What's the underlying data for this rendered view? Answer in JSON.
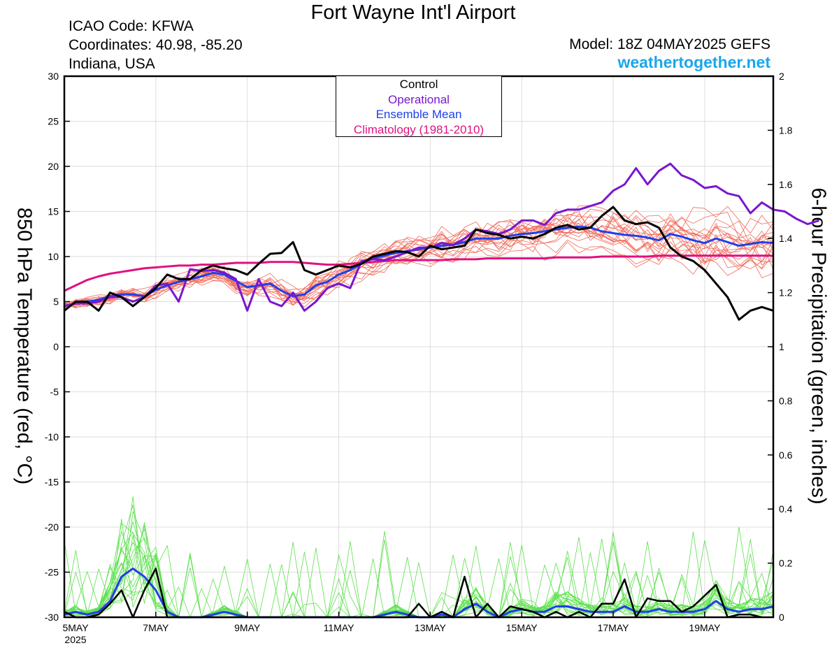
{
  "header": {
    "title": "Fort Wayne Int'l Airport",
    "icao": "ICAO Code: KFWA",
    "coordinates": "Coordinates: 40.98, -85.20",
    "region": "Indiana, USA",
    "model": "Model: 18Z 04MAY2025 GEFS",
    "site": "weathertogether.net"
  },
  "chart_data": {
    "type": "line",
    "title": "Fort Wayne Int'l Airport",
    "ylabel": "850 hPa Temperature (red, °C)",
    "y2label": "6-hour Precipitation (green, inches)",
    "ylim": [
      -30,
      30
    ],
    "y2lim": [
      0,
      2
    ],
    "yticks": [
      "30",
      "25",
      "20",
      "15",
      "10",
      "5",
      "0",
      "-5",
      "-10",
      "-15",
      "-20",
      "-25",
      "-30"
    ],
    "y2ticks": [
      "2",
      "1.8",
      "1.6",
      "1.4",
      "1.2",
      "1",
      "0.8",
      "0.6",
      "0.4",
      "0.2",
      "0"
    ],
    "xlim": [
      0,
      62
    ],
    "xticks": [
      {
        "x": 0,
        "label": "5MAY",
        "sub": "2025"
      },
      {
        "x": 8,
        "label": "7MAY"
      },
      {
        "x": 16,
        "label": "9MAY"
      },
      {
        "x": 24,
        "label": "11MAY"
      },
      {
        "x": 32,
        "label": "13MAY"
      },
      {
        "x": 40,
        "label": "15MAY"
      },
      {
        "x": 48,
        "label": "17MAY"
      },
      {
        "x": 56,
        "label": "19MAY"
      }
    ],
    "legend": [
      "Control",
      "Operational",
      "Ensemble Mean",
      "Climatology (1981-2010)"
    ],
    "colors": {
      "control": "#000000",
      "operational": "#7a16cf",
      "mean": "#2140e8",
      "climatology": "#e0117f",
      "members": "#f06a5a",
      "precip_members": "#5ae04a"
    },
    "series": {
      "control": [
        4,
        5,
        5,
        4,
        6,
        5.5,
        4.5,
        5.5,
        6.5,
        8,
        7.5,
        7.5,
        8.5,
        9,
        8.7,
        8.5,
        8,
        9.2,
        10.3,
        10.4,
        11.6,
        8.5,
        8,
        8.5,
        9,
        8.8,
        9.2,
        10,
        10.3,
        10.6,
        10.5,
        10,
        11.2,
        10.8,
        11,
        11.2,
        13,
        12.6,
        12.4,
        12,
        12.2,
        12,
        12.5,
        13.2,
        13.5,
        13,
        13.2,
        14.5,
        15.5,
        14,
        13.6,
        13.8,
        13.2,
        11,
        10,
        9.5,
        8.5,
        7,
        5.5,
        3,
        4,
        4.4,
        4
      ],
      "operational": [
        4.5,
        4.8,
        4.8,
        5,
        5.5,
        5.5,
        5,
        5.5,
        6.8,
        7,
        5,
        8.6,
        8.4,
        8.5,
        8.2,
        7.5,
        4,
        7.5,
        5,
        4.5,
        6,
        4,
        5,
        6.5,
        7,
        6.5,
        9.5,
        9.7,
        9.6,
        10,
        10.5,
        11,
        11,
        11.5,
        11.3,
        12,
        13,
        12.8,
        12.5,
        13,
        14,
        14,
        13.5,
        14.8,
        15.2,
        15.2,
        15.6,
        16,
        17.3,
        18,
        19.8,
        18,
        19.5,
        20.3,
        19,
        18.5,
        17.6,
        17.8,
        17,
        16.7,
        14.8,
        16,
        15.2,
        15,
        14.2,
        13.6,
        14
      ],
      "mean": [
        4.5,
        4.8,
        5,
        5.2,
        5.6,
        5.8,
        5.8,
        5.6,
        6.3,
        6.8,
        7.2,
        7.5,
        7.8,
        8.2,
        8,
        7.3,
        6.6,
        6.8,
        7,
        6.2,
        5.6,
        5.8,
        6.8,
        7.2,
        8,
        8.5,
        9.2,
        9.8,
        10.1,
        10.4,
        10.6,
        10.8,
        11,
        11.2,
        11.3,
        11.6,
        12,
        12,
        12,
        12.3,
        12.5,
        12.6,
        12.8,
        13,
        13.2,
        13.3,
        13.2,
        12.8,
        12.6,
        12.4,
        12.3,
        12.1,
        11.8,
        12.5,
        12.2,
        11.8,
        11.5,
        12,
        11.6,
        11.2,
        11.4,
        11.6,
        11.5
      ],
      "climatology": [
        6.2,
        6.8,
        7.4,
        7.8,
        8.1,
        8.3,
        8.5,
        8.7,
        8.8,
        8.9,
        9.0,
        9.0,
        9.1,
        9.1,
        9.2,
        9.3,
        9.3,
        9.3,
        9.4,
        9.4,
        9.4,
        9.3,
        9.2,
        9.1,
        9.1,
        9.2,
        9.3,
        9.4,
        9.5,
        9.6,
        9.6,
        9.6,
        9.6,
        9.6,
        9.7,
        9.7,
        9.7,
        9.8,
        9.8,
        9.8,
        9.8,
        9.8,
        9.8,
        9.9,
        9.9,
        9.9,
        9.9,
        10.0,
        10.0,
        10.0,
        10.0,
        10.0,
        10.1,
        10.1,
        10.1,
        10.1,
        10.1,
        10.1,
        10.1,
        10.1,
        10.1,
        10.1,
        10.1
      ],
      "precip_control": [
        0.02,
        0,
        0,
        0.01,
        0.05,
        0.1,
        0,
        0.1,
        0.18,
        0,
        0,
        0,
        0,
        0,
        0,
        0,
        0,
        0,
        0,
        0,
        0,
        0,
        0,
        0,
        0,
        0,
        0,
        0,
        0,
        0,
        0,
        0.05,
        0,
        0.02,
        0,
        0.15,
        0,
        0.05,
        0,
        0.04,
        0.03,
        0.02,
        0,
        0.02,
        0,
        0.02,
        0,
        0.05,
        0.05,
        0.14,
        0,
        0.07,
        0.06,
        0.06,
        0.02,
        0.04,
        0.08,
        0.12,
        0,
        0.01,
        0.01,
        0
      ],
      "precip_mean": [
        0.01,
        0.02,
        0.01,
        0.02,
        0.06,
        0.15,
        0.18,
        0.15,
        0.1,
        0.02,
        0,
        0,
        0,
        0.01,
        0.02,
        0.01,
        0,
        0,
        0,
        0,
        0,
        0,
        0,
        0,
        0,
        0,
        0,
        0,
        0.01,
        0.02,
        0.01,
        0,
        0,
        0.01,
        0,
        0.03,
        0.05,
        0.02,
        0,
        0.02,
        0.03,
        0.02,
        0.02,
        0.04,
        0.04,
        0.03,
        0.02,
        0.02,
        0.02,
        0.04,
        0.02,
        0.02,
        0.03,
        0.02,
        0.02,
        0.02,
        0.03,
        0.06,
        0.03,
        0.02,
        0.03,
        0.03,
        0.04
      ]
    }
  }
}
